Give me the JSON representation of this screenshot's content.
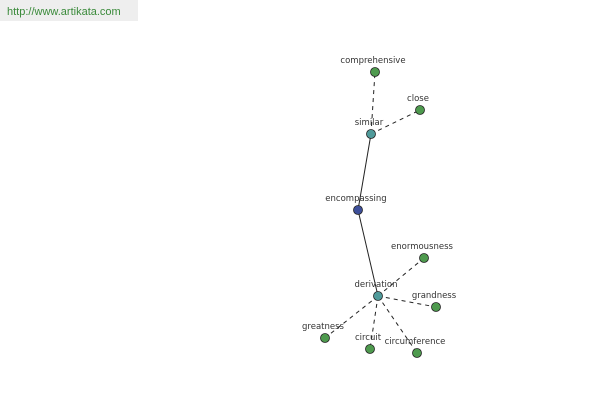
{
  "header": {
    "url": "http://www.artikata.com"
  },
  "nodes": [
    {
      "label": "comprehensive"
    },
    {
      "label": "close"
    },
    {
      "label": "similar"
    },
    {
      "label": "encompassing"
    },
    {
      "label": "enormousness"
    },
    {
      "label": "derivation"
    },
    {
      "label": "grandness"
    },
    {
      "label": "greatness"
    },
    {
      "label": "circuit"
    },
    {
      "label": "circumference"
    }
  ]
}
